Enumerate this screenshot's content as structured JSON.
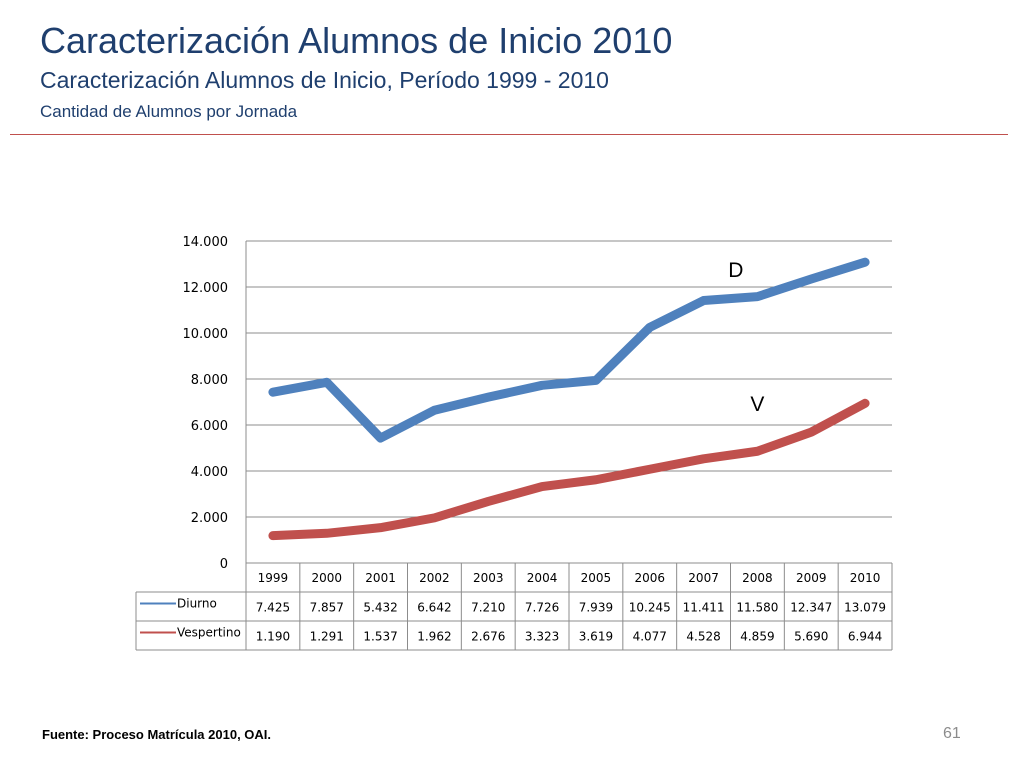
{
  "slide": {
    "title": "Caracterización Alumnos de Inicio 2010",
    "subtitle": "Caracterización Alumnos de Inicio, Período 1999 - 2010",
    "subsubtitle": "Cantidad de Alumnos por Jornada",
    "source": "Fuente: Proceso Matrícula 2010, OAI.",
    "page_number": "61"
  },
  "chart_data": {
    "type": "line",
    "title": "",
    "xlabel": "",
    "ylabel": "",
    "categories": [
      "1999",
      "2000",
      "2001",
      "2002",
      "2003",
      "2004",
      "2005",
      "2006",
      "2007",
      "2008",
      "2009",
      "2010"
    ],
    "ylim": [
      0,
      14000
    ],
    "yticks": [
      0,
      2000,
      4000,
      6000,
      8000,
      10000,
      12000,
      14000
    ],
    "ytick_labels": [
      "0",
      "2.000",
      "4.000",
      "6.000",
      "8.000",
      "10.000",
      "12.000",
      "14.000"
    ],
    "grid": true,
    "legend": "data-table",
    "series": [
      {
        "name": "Diurno",
        "color": "#4f81bd",
        "values": [
          7425,
          7857,
          5432,
          6642,
          7210,
          7726,
          7939,
          10245,
          11411,
          11580,
          12347,
          13079
        ],
        "labels": [
          "7.425",
          "7.857",
          "5.432",
          "6.642",
          "7.210",
          "7.726",
          "7.939",
          "10.245",
          "11.411",
          "11.580",
          "12.347",
          "13.079"
        ]
      },
      {
        "name": "Vespertino",
        "color": "#c0504d",
        "values": [
          1190,
          1291,
          1537,
          1962,
          2676,
          3323,
          3619,
          4077,
          4528,
          4859,
          5690,
          6944
        ],
        "labels": [
          "1.190",
          "1.291",
          "1.537",
          "1.962",
          "2.676",
          "3.323",
          "3.619",
          "4.077",
          "4.528",
          "4.859",
          "5.690",
          "6.944"
        ]
      }
    ],
    "annotations": [
      {
        "text": "D",
        "series": "Diurno"
      },
      {
        "text": "V",
        "series": "Vespertino"
      }
    ]
  }
}
